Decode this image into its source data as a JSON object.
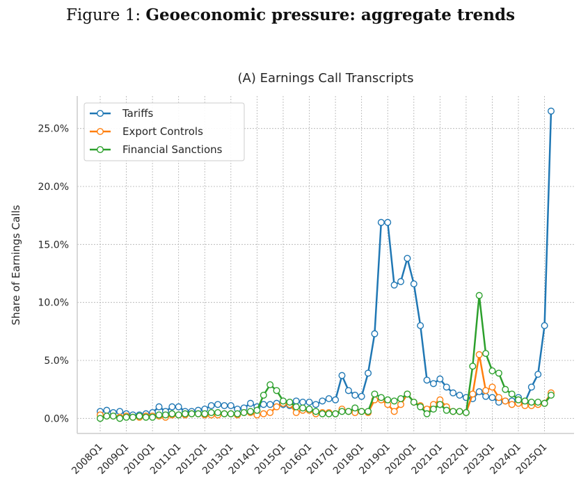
{
  "figure": {
    "prefix": "Figure 1:",
    "title": "Geoeconomic pressure: aggregate trends"
  },
  "chart_data": {
    "type": "line",
    "title": "(A) Earnings Call Transcripts",
    "xlabel": "",
    "ylabel": "Share of Earnings Calls",
    "ylim": [
      -1.3,
      27.8
    ],
    "yticks": [
      0,
      5,
      10,
      15,
      20,
      25
    ],
    "ytick_labels": [
      "0.0%",
      "5.0%",
      "10.0%",
      "15.0%",
      "20.0%",
      "25.0%"
    ],
    "x_start": "2008Q1",
    "x_end": "2025Q1",
    "xtick_labels": [
      "2008Q1",
      "2009Q1",
      "2010Q1",
      "2011Q1",
      "2012Q1",
      "2013Q1",
      "2014Q1",
      "2015Q1",
      "2016Q1",
      "2017Q1",
      "2018Q1",
      "2019Q1",
      "2020Q1",
      "2021Q1",
      "2022Q1",
      "2023Q1",
      "2024Q1",
      "2025Q1"
    ],
    "grid": true,
    "legend_position": "top-left",
    "series": [
      {
        "name": "Tariffs",
        "color": "#1f77b4",
        "values": [
          0.6,
          0.7,
          0.5,
          0.6,
          0.4,
          0.3,
          0.3,
          0.4,
          0.5,
          1.0,
          0.6,
          1.0,
          1.0,
          0.6,
          0.6,
          0.7,
          0.8,
          1.1,
          1.2,
          1.1,
          1.1,
          0.8,
          0.9,
          1.3,
          1.0,
          1.2,
          1.2,
          1.3,
          1.2,
          1.1,
          1.5,
          1.4,
          1.4,
          1.2,
          1.5,
          1.7,
          1.6,
          3.7,
          2.4,
          2.0,
          1.9,
          3.9,
          7.3,
          16.9,
          16.9,
          11.5,
          11.8,
          13.8,
          11.6,
          8.0,
          3.3,
          3.0,
          3.4,
          2.7,
          2.2,
          2.0,
          1.8,
          1.7,
          2.3,
          1.9,
          1.8,
          1.4,
          1.5,
          1.5,
          1.8,
          1.4,
          2.7,
          3.8,
          8.0,
          26.5
        ]
      },
      {
        "name": "Export Controls",
        "color": "#ff7f0e",
        "values": [
          0.3,
          0.2,
          0.2,
          0.1,
          0.2,
          0.1,
          0.1,
          0.2,
          0.2,
          0.2,
          0.1,
          0.3,
          0.3,
          0.3,
          0.4,
          0.4,
          0.3,
          0.3,
          0.3,
          0.4,
          0.4,
          0.3,
          0.5,
          0.5,
          0.3,
          0.4,
          0.5,
          1.0,
          1.3,
          1.2,
          0.5,
          0.7,
          0.7,
          0.4,
          0.5,
          0.5,
          0.4,
          0.8,
          0.6,
          0.5,
          0.6,
          0.5,
          1.6,
          1.6,
          1.2,
          0.6,
          1.2,
          2.1,
          1.4,
          1.1,
          0.8,
          1.2,
          1.6,
          1.0,
          0.6,
          0.6,
          0.5,
          2.1,
          5.5,
          2.4,
          2.7,
          1.8,
          1.5,
          1.2,
          1.3,
          1.1,
          1.1,
          1.2,
          1.3,
          2.2
        ]
      },
      {
        "name": "Financial Sanctions",
        "color": "#2ca02c",
        "values": [
          0.0,
          0.2,
          0.2,
          0.0,
          0.1,
          0.1,
          0.2,
          0.1,
          0.1,
          0.3,
          0.3,
          0.4,
          0.3,
          0.4,
          0.4,
          0.4,
          0.4,
          0.5,
          0.5,
          0.4,
          0.4,
          0.4,
          0.5,
          0.6,
          0.7,
          2.0,
          2.9,
          2.4,
          1.5,
          1.4,
          1.0,
          0.9,
          0.8,
          0.6,
          0.4,
          0.4,
          0.4,
          0.6,
          0.6,
          0.9,
          0.6,
          0.6,
          2.1,
          1.8,
          1.6,
          1.5,
          1.7,
          2.1,
          1.4,
          1.0,
          0.4,
          0.8,
          1.2,
          0.7,
          0.6,
          0.6,
          0.5,
          4.5,
          10.6,
          5.6,
          4.1,
          3.9,
          2.5,
          2.1,
          1.6,
          1.5,
          1.4,
          1.4,
          1.3,
          2.0
        ]
      }
    ]
  }
}
